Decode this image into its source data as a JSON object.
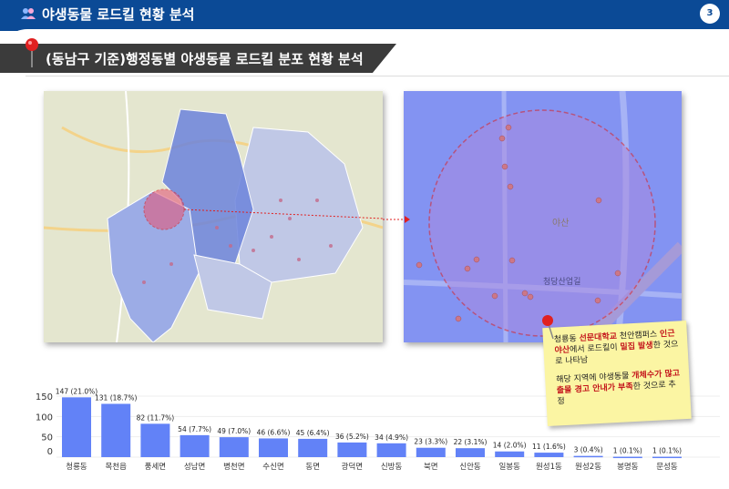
{
  "header": {
    "title": "야생동물 로드킬 현황 분석",
    "page_number": "3",
    "icon": "users-icon",
    "color": "#0b4a96"
  },
  "section": {
    "title": "(동남구 기준)행정동별 야생동물 로드킬 분포 현황 분석",
    "icon": "pushpin-icon"
  },
  "map_right": {
    "label_mountain": "야산",
    "label_road": "청당산업길"
  },
  "note": {
    "p1": [
      {
        "t": "청룡동 ",
        "r": false
      },
      {
        "t": "선문대학교",
        "r": true
      },
      {
        "t": " 천안캠퍼스 ",
        "r": false
      },
      {
        "t": "인근 야산",
        "r": true
      },
      {
        "t": "에서 로드킬이 ",
        "r": false
      },
      {
        "t": "밀집 발생",
        "r": true
      },
      {
        "t": "한 것으로 나타남",
        "r": false
      }
    ],
    "p2": [
      {
        "t": "해당 지역에 야생동물 ",
        "r": false
      },
      {
        "t": "개체수가 많고 출몰 경고 안내가 부족",
        "r": true
      },
      {
        "t": "한 것으로 추정",
        "r": false
      }
    ]
  },
  "chart_data": {
    "type": "bar",
    "categories": [
      "청룡동",
      "목천읍",
      "풍세면",
      "성남면",
      "병천면",
      "수신면",
      "동면",
      "광덕면",
      "신방동",
      "북면",
      "신안동",
      "일봉동",
      "원성1동",
      "원성2동",
      "봉명동",
      "문성동"
    ],
    "values": [
      147,
      131,
      82,
      54,
      49,
      46,
      45,
      36,
      34,
      23,
      22,
      14,
      11,
      3,
      1,
      1
    ],
    "data_labels": [
      "147 (21.0%)",
      "131 (18.7%)",
      "82 (11.7%)",
      "54 (7.7%)",
      "49 (7.0%)",
      "46 (6.6%)",
      "45 (6.4%)",
      "36 (5.2%)",
      "34 (4.9%)",
      "23 (3.3%)",
      "22 (3.1%)",
      "14 (2.0%)",
      "11 (1.6%)",
      "3 (0.4%)",
      "1 (0.1%)",
      "1 (0.1%)"
    ],
    "yticks": [
      0,
      50,
      100,
      150
    ],
    "ylim": [
      0,
      150
    ],
    "grid": true,
    "bar_color": "#6282f7"
  }
}
